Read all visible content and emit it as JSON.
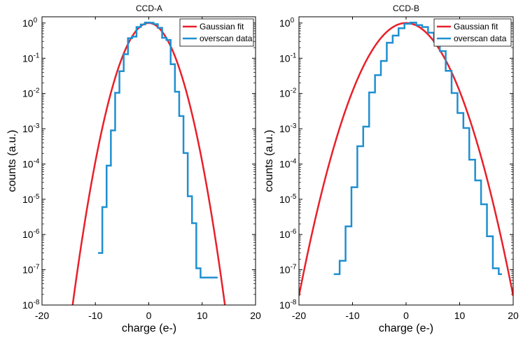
{
  "chart_data": [
    {
      "type": "line",
      "title": "CCD-A",
      "xlabel": "charge (e-)",
      "ylabel": "counts (a.u.)",
      "xlim": [
        -20,
        20
      ],
      "ylim": [
        1e-08,
        1.5
      ],
      "yscale": "log",
      "xticks": [
        "-20",
        "-10",
        "0",
        "10",
        "20"
      ],
      "yticks": [
        {
          "base": "10",
          "exp": "0",
          "value": 1
        },
        {
          "base": "10",
          "exp": "-1",
          "value": 0.1
        },
        {
          "base": "10",
          "exp": "-2",
          "value": 0.01
        },
        {
          "base": "10",
          "exp": "-3",
          "value": 0.001
        },
        {
          "base": "10",
          "exp": "-4",
          "value": 0.0001
        },
        {
          "base": "10",
          "exp": "-5",
          "value": 1e-05
        },
        {
          "base": "10",
          "exp": "-6",
          "value": 1e-06
        },
        {
          "base": "10",
          "exp": "-7",
          "value": 1e-07
        },
        {
          "base": "10",
          "exp": "-8",
          "value": 1e-08
        }
      ],
      "legend_position": "top-right",
      "series": [
        {
          "name": "Gaussian fit",
          "kind": "gaussian",
          "color": "#e8202a",
          "sigma": 2.35,
          "amplitude": 1
        },
        {
          "name": "overscan data",
          "kind": "step",
          "color": "#1f8fd0",
          "x": [
            -9.5,
            -8.7,
            -7.9,
            -7.1,
            -6.3,
            -5.5,
            -4.7,
            -3.9,
            -3.1,
            -2.3,
            -1.5,
            -0.7,
            0.1,
            0.9,
            1.7,
            2.5,
            3.3,
            4.1,
            4.9,
            5.7,
            6.5,
            7.3,
            8.1,
            8.9,
            9.7,
            10.5,
            11.3,
            12.3
          ],
          "y": [
            3e-07,
            6e-06,
            9e-05,
            0.0009,
            0.0105,
            0.043,
            0.13,
            0.37,
            0.41,
            0.77,
            0.91,
            1.03,
            1.02,
            0.93,
            0.73,
            0.38,
            0.33,
            0.068,
            0.0112,
            0.0023,
            0.000205,
            1.22e-05,
            2.1e-06,
            1.1e-07,
            6e-08,
            6e-08,
            6e-08,
            6e-08
          ]
        }
      ]
    },
    {
      "type": "line",
      "title": "CCD-B",
      "xlabel": "charge (e-)",
      "ylabel": "counts (a.u.)",
      "xlim": [
        -20,
        20
      ],
      "ylim": [
        1e-08,
        1.5
      ],
      "yscale": "log",
      "xticks": [
        "-20",
        "-10",
        "0",
        "10",
        "20"
      ],
      "yticks": [
        {
          "base": "10",
          "exp": "0",
          "value": 1
        },
        {
          "base": "10",
          "exp": "-1",
          "value": 0.1
        },
        {
          "base": "10",
          "exp": "-2",
          "value": 0.01
        },
        {
          "base": "10",
          "exp": "-3",
          "value": 0.001
        },
        {
          "base": "10",
          "exp": "-4",
          "value": 0.0001
        },
        {
          "base": "10",
          "exp": "-5",
          "value": 1e-05
        },
        {
          "base": "10",
          "exp": "-6",
          "value": 1e-06
        },
        {
          "base": "10",
          "exp": "-7",
          "value": 1e-07
        },
        {
          "base": "10",
          "exp": "-8",
          "value": 1e-08
        }
      ],
      "legend_position": "top-right",
      "series": [
        {
          "name": "Gaussian fit",
          "kind": "gaussian",
          "color": "#e8202a",
          "sigma": 3.35,
          "amplitude": 1
        },
        {
          "name": "overscan data",
          "kind": "step",
          "color": "#1f8fd0",
          "x": [
            -13.5,
            -12.4,
            -11.3,
            -10.2,
            -9.1,
            -8.0,
            -6.9,
            -5.8,
            -4.7,
            -3.6,
            -2.5,
            -1.4,
            -0.3,
            0.8,
            1.9,
            3.0,
            4.1,
            5.2,
            6.3,
            7.4,
            8.5,
            9.6,
            10.7,
            11.8,
            12.9,
            14.0,
            15.1,
            16.2,
            17.3
          ],
          "y": [
            7.5e-08,
            1.8e-07,
            1.7e-06,
            2.2e-05,
            0.00032,
            0.00115,
            0.0107,
            0.0333,
            0.084,
            0.275,
            0.44,
            0.71,
            0.95,
            1.03,
            0.87,
            0.77,
            0.53,
            0.295,
            0.16,
            0.044,
            0.0103,
            0.0028,
            0.00105,
            0.000133,
            3.42e-05,
            7.2e-06,
            8.9e-07,
            1.1e-07,
            7.5e-08
          ]
        }
      ]
    }
  ]
}
